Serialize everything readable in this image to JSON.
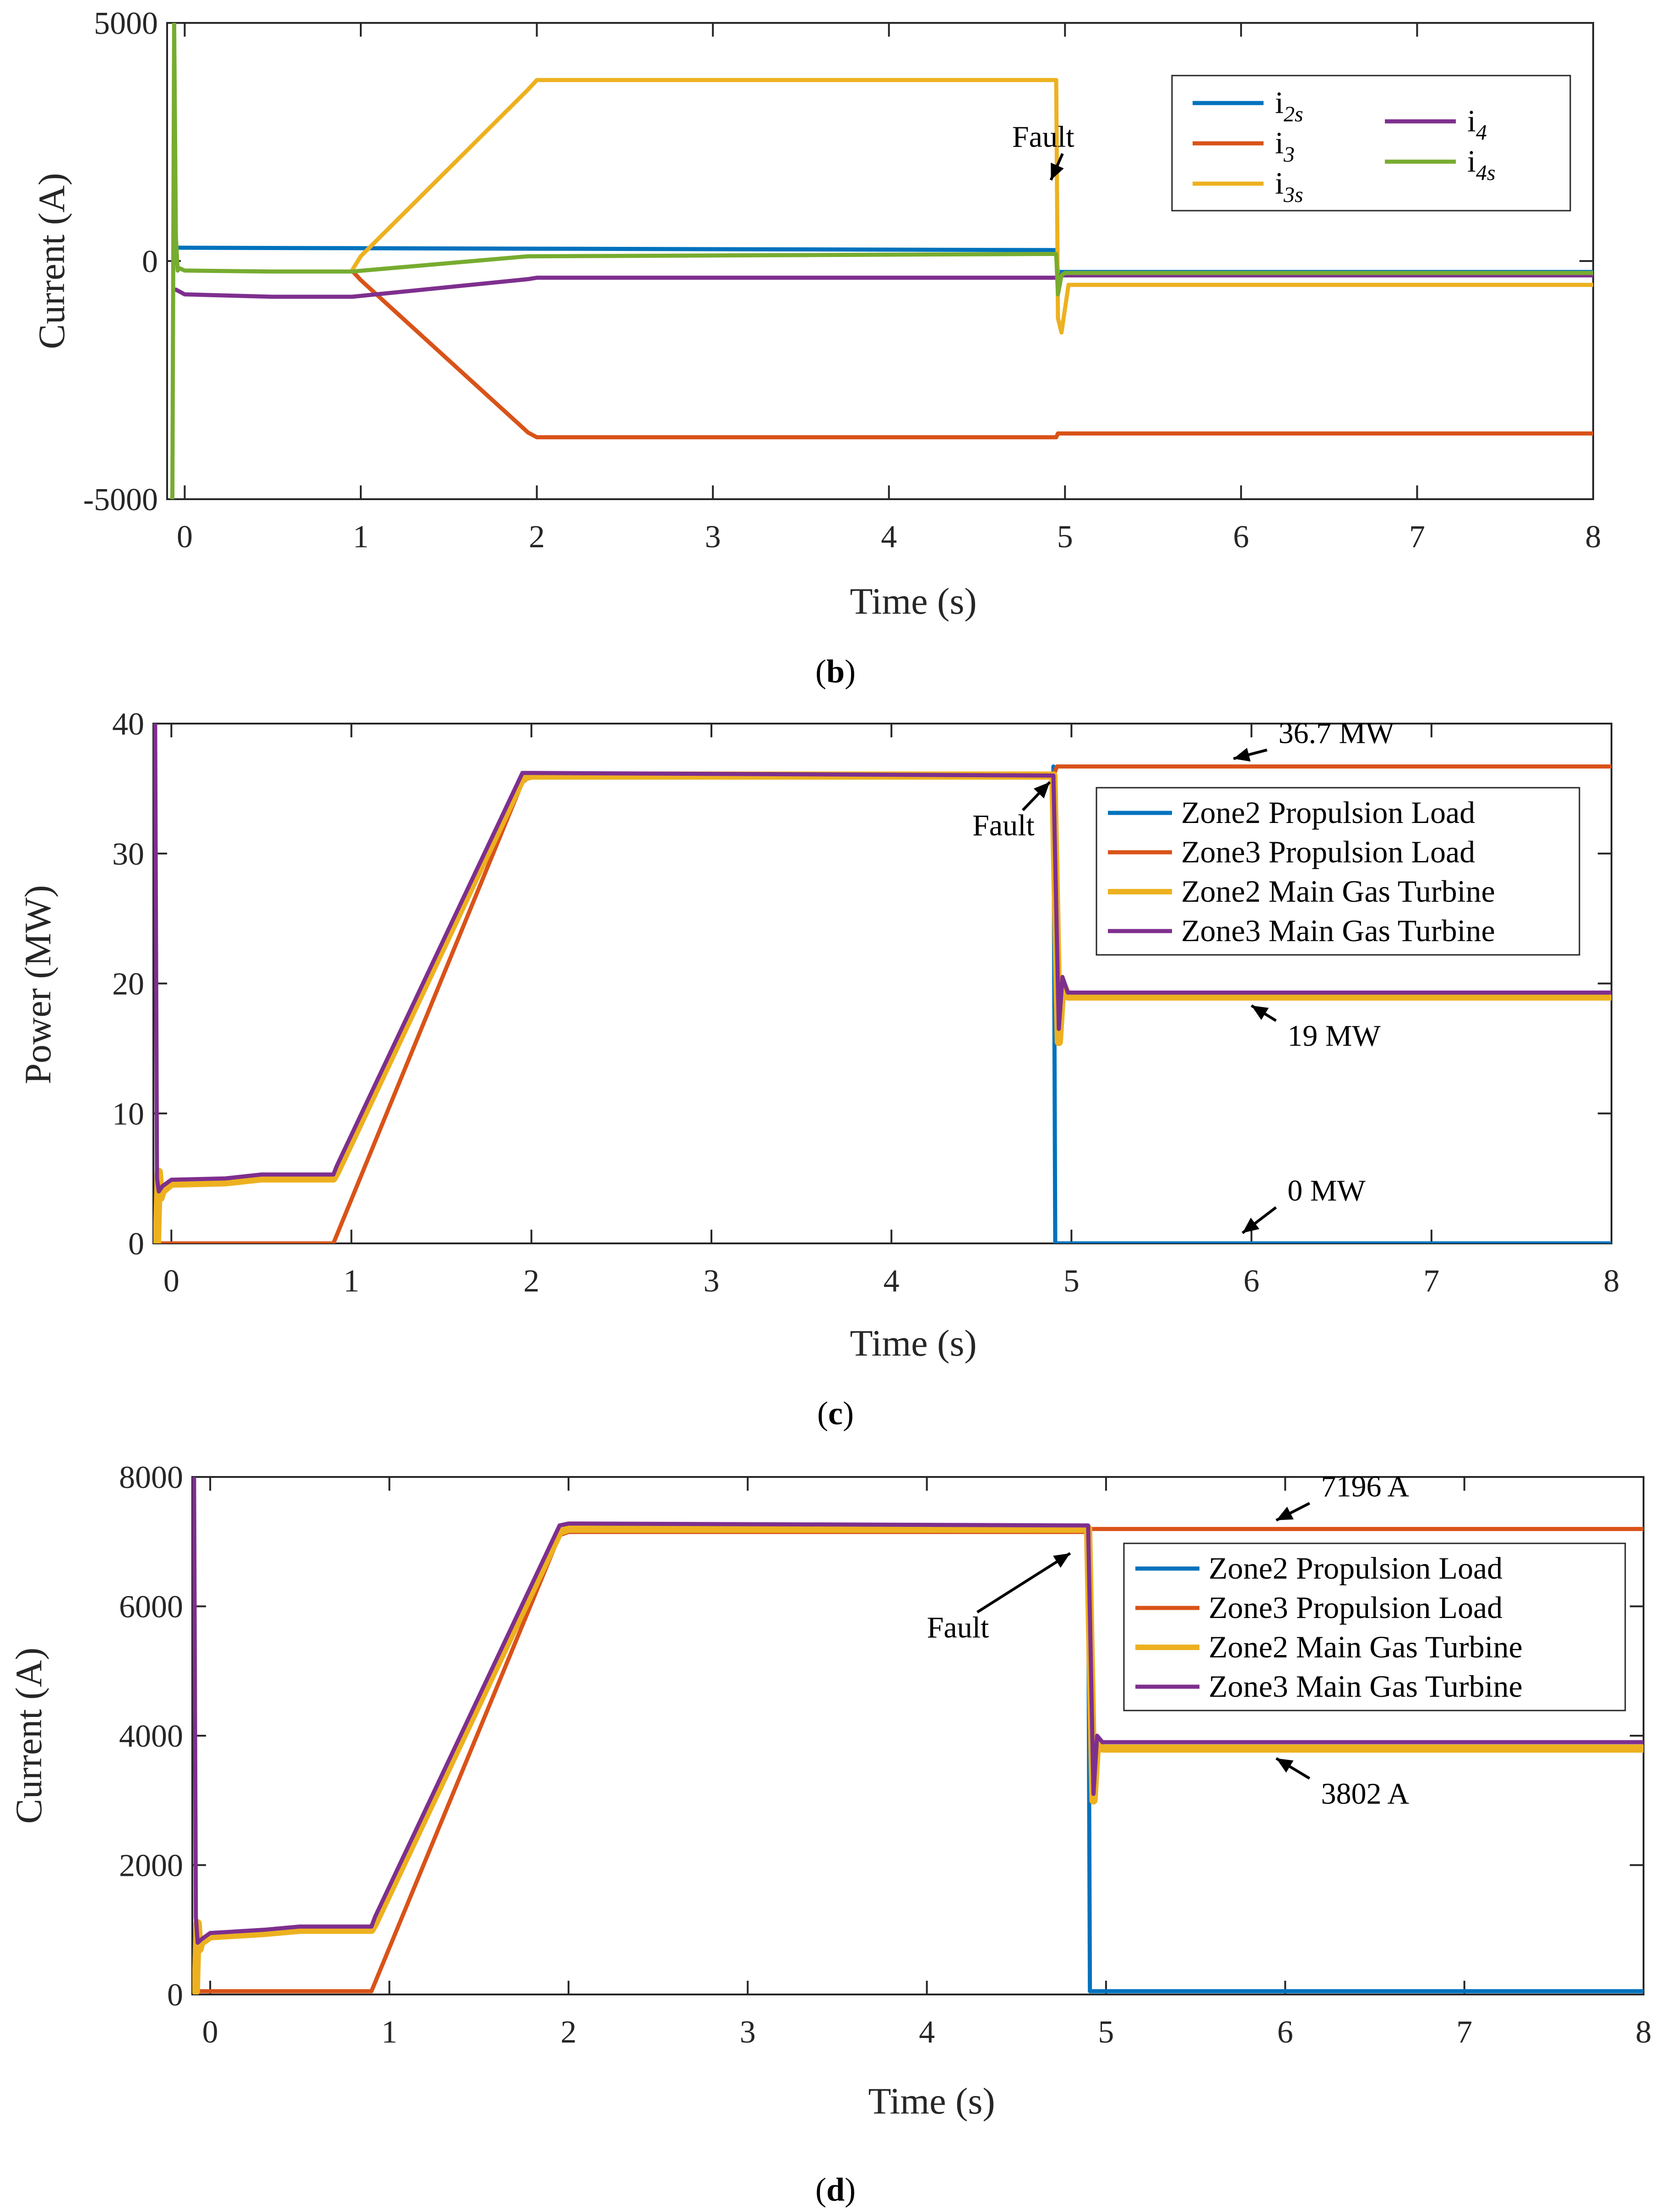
{
  "colors": {
    "blue": "#0072BD",
    "orange": "#D95319",
    "yellow": "#EDB120",
    "purple": "#7E2F8E",
    "green": "#77AC30"
  },
  "chart_data": [
    {
      "type": "line",
      "panel": "b",
      "caption": {
        "open": "(",
        "letter": "b",
        "close": ")"
      },
      "xlabel": "Time (s)",
      "ylabel": "Current (A)",
      "xlim": [
        -0.1,
        8
      ],
      "ylim": [
        -5000,
        5000
      ],
      "xticks": [
        0,
        1,
        2,
        3,
        4,
        5,
        6,
        7,
        8
      ],
      "yticks": [
        -5000,
        0,
        5000
      ],
      "legend_columns": 2,
      "series": [
        {
          "name": "i",
          "sub": "2s",
          "color": "#0072BD",
          "width": 9,
          "x": [
            -0.05,
            4.95,
            4.96,
            8
          ],
          "y": [
            280,
            230,
            -230,
            -230
          ]
        },
        {
          "name": "i",
          "sub": "3",
          "color": "#D95319",
          "width": 9,
          "x": [
            0.95,
            1.0,
            1.95,
            2.0,
            4.95,
            4.96,
            8
          ],
          "y": [
            -200,
            -400,
            -3600,
            -3700,
            -3700,
            -3620,
            -3620
          ]
        },
        {
          "name": "i",
          "sub": "3s",
          "color": "#EDB120",
          "width": 9,
          "x": [
            0.95,
            1.0,
            1.95,
            2.0,
            4.95,
            4.96,
            4.98,
            5.02,
            8
          ],
          "y": [
            -200,
            100,
            3600,
            3800,
            3800,
            -1200,
            -1500,
            -500,
            -500
          ]
        },
        {
          "name": "i",
          "sub": "4",
          "color": "#7E2F8E",
          "width": 9,
          "x": [
            -0.05,
            0.0,
            0.5,
            0.95,
            1.95,
            2.0,
            4.95,
            4.96,
            8
          ],
          "y": [
            -600,
            -700,
            -750,
            -750,
            -380,
            -350,
            -350,
            -300,
            -300
          ]
        },
        {
          "name": "i",
          "sub": "4s",
          "color": "#77AC30",
          "width": 9,
          "x": [
            -0.07,
            -0.06,
            -0.05,
            -0.04,
            -0.03,
            0.0,
            0.5,
            0.95,
            1.95,
            2.0,
            4.95,
            4.96,
            4.98,
            5.0,
            8
          ],
          "y": [
            -5000,
            5000,
            500,
            -200,
            -150,
            -200,
            -220,
            -220,
            100,
            100,
            150,
            -700,
            -300,
            -250,
            -250
          ]
        }
      ],
      "annotations": [
        {
          "text": "Fault",
          "x": 4.7,
          "y": 2400,
          "arrow_to_x": 4.92,
          "arrow_to_y": 1700
        }
      ]
    },
    {
      "type": "line",
      "panel": "c",
      "caption": {
        "open": "(",
        "letter": "c",
        "close": ")"
      },
      "xlabel": "Time (s)",
      "ylabel": "Power (MW)",
      "xlim": [
        -0.1,
        8
      ],
      "ylim": [
        0,
        40
      ],
      "xticks": [
        0,
        1,
        2,
        3,
        4,
        5,
        6,
        7,
        8
      ],
      "yticks": [
        0,
        10,
        20,
        30,
        40
      ],
      "legend_columns": 1,
      "series": [
        {
          "name": "Zone2 Propulsion Load",
          "color": "#0072BD",
          "width": 9,
          "x": [
            4.9,
            4.91,
            8
          ],
          "y": [
            36.7,
            0,
            0
          ]
        },
        {
          "name": "Zone3 Propulsion Load",
          "color": "#D95319",
          "width": 9,
          "x": [
            -0.1,
            0.9,
            1.95,
            2.0,
            4.9,
            4.92,
            8
          ],
          "y": [
            0,
            0,
            35.5,
            36.0,
            36.0,
            36.7,
            36.7
          ]
        },
        {
          "name": "Zone2 Main Gas Turbine",
          "color": "#EDB120",
          "width": 18,
          "x": [
            -0.08,
            -0.07,
            -0.06,
            -0.05,
            0.0,
            0.3,
            0.5,
            0.9,
            0.92,
            1.95,
            2.0,
            4.9,
            4.93,
            4.95,
            4.98,
            8
          ],
          "y": [
            0,
            5.5,
            3.5,
            4.0,
            4.6,
            4.7,
            5.0,
            5.0,
            5.5,
            35.8,
            36.0,
            36.0,
            15.5,
            20.0,
            19.0,
            19.0
          ]
        },
        {
          "name": "Zone3 Main Gas Turbine",
          "color": "#7E2F8E",
          "width": 9,
          "x": [
            -0.09,
            -0.08,
            -0.07,
            -0.05,
            0.0,
            0.3,
            0.5,
            0.9,
            0.92,
            1.95,
            2.0,
            4.9,
            4.93,
            4.95,
            4.98,
            8
          ],
          "y": [
            40,
            5.0,
            4.0,
            4.4,
            4.9,
            5.0,
            5.3,
            5.3,
            6.0,
            36.2,
            36.2,
            36.0,
            16.5,
            20.5,
            19.3,
            19.3
          ]
        }
      ],
      "annotations": [
        {
          "text": "36.7 MW",
          "x": 6.15,
          "y": 38.5,
          "arrow_to_x": 5.9,
          "arrow_to_y": 37.3
        },
        {
          "text": "Fault",
          "x": 4.45,
          "y": 31.4,
          "arrow_to_x": 4.88,
          "arrow_to_y": 35.5
        },
        {
          "text": "19 MW",
          "x": 6.2,
          "y": 15.2,
          "arrow_to_x": 6.0,
          "arrow_to_y": 18.3
        },
        {
          "text": "0 MW",
          "x": 6.2,
          "y": 3.3,
          "arrow_to_x": 5.95,
          "arrow_to_y": 0.8
        }
      ]
    },
    {
      "type": "line",
      "panel": "d",
      "caption": {
        "open": "(",
        "letter": "d",
        "close": ")"
      },
      "xlabel": "Time (s)",
      "ylabel": "Current (A)",
      "xlim": [
        -0.1,
        8
      ],
      "ylim": [
        0,
        8000
      ],
      "xticks": [
        0,
        1,
        2,
        3,
        4,
        5,
        6,
        7,
        8
      ],
      "yticks": [
        0,
        2000,
        4000,
        6000,
        8000
      ],
      "legend_columns": 1,
      "series": [
        {
          "name": "Zone2 Propulsion Load",
          "color": "#0072BD",
          "width": 9,
          "x": [
            4.9,
            4.91,
            8
          ],
          "y": [
            7196,
            50,
            50
          ]
        },
        {
          "name": "Zone3 Propulsion Load",
          "color": "#D95319",
          "width": 9,
          "x": [
            -0.1,
            0.9,
            1.95,
            2.0,
            4.9,
            4.92,
            8
          ],
          "y": [
            50,
            50,
            7100,
            7150,
            7150,
            7196,
            7196
          ]
        },
        {
          "name": "Zone2 Main Gas Turbine",
          "color": "#EDB120",
          "width": 18,
          "x": [
            -0.08,
            -0.07,
            -0.06,
            -0.05,
            0.0,
            0.3,
            0.5,
            0.9,
            0.92,
            1.95,
            2.0,
            4.9,
            4.93,
            4.95,
            4.98,
            8
          ],
          "y": [
            50,
            1100,
            700,
            800,
            900,
            950,
            1000,
            1000,
            1100,
            7150,
            7200,
            7200,
            3000,
            3900,
            3802,
            3802
          ]
        },
        {
          "name": "Zone3 Main Gas Turbine",
          "color": "#7E2F8E",
          "width": 9,
          "x": [
            -0.09,
            -0.08,
            -0.07,
            -0.05,
            0.0,
            0.3,
            0.5,
            0.9,
            0.92,
            1.95,
            2.0,
            4.9,
            4.93,
            4.95,
            4.98,
            8
          ],
          "y": [
            8000,
            1200,
            800,
            850,
            950,
            1000,
            1050,
            1050,
            1200,
            7250,
            7280,
            7250,
            3100,
            4000,
            3900,
            3900
          ]
        }
      ],
      "annotations": [
        {
          "text": "7196 A",
          "x": 6.2,
          "y": 7700,
          "arrow_to_x": 5.95,
          "arrow_to_y": 7330
        },
        {
          "text": "Fault",
          "x": 4.0,
          "y": 5520,
          "arrow_to_x": 4.8,
          "arrow_to_y": 6820
        },
        {
          "text": "3802 A",
          "x": 6.2,
          "y": 2950,
          "arrow_to_x": 5.95,
          "arrow_to_y": 3650
        }
      ]
    }
  ]
}
